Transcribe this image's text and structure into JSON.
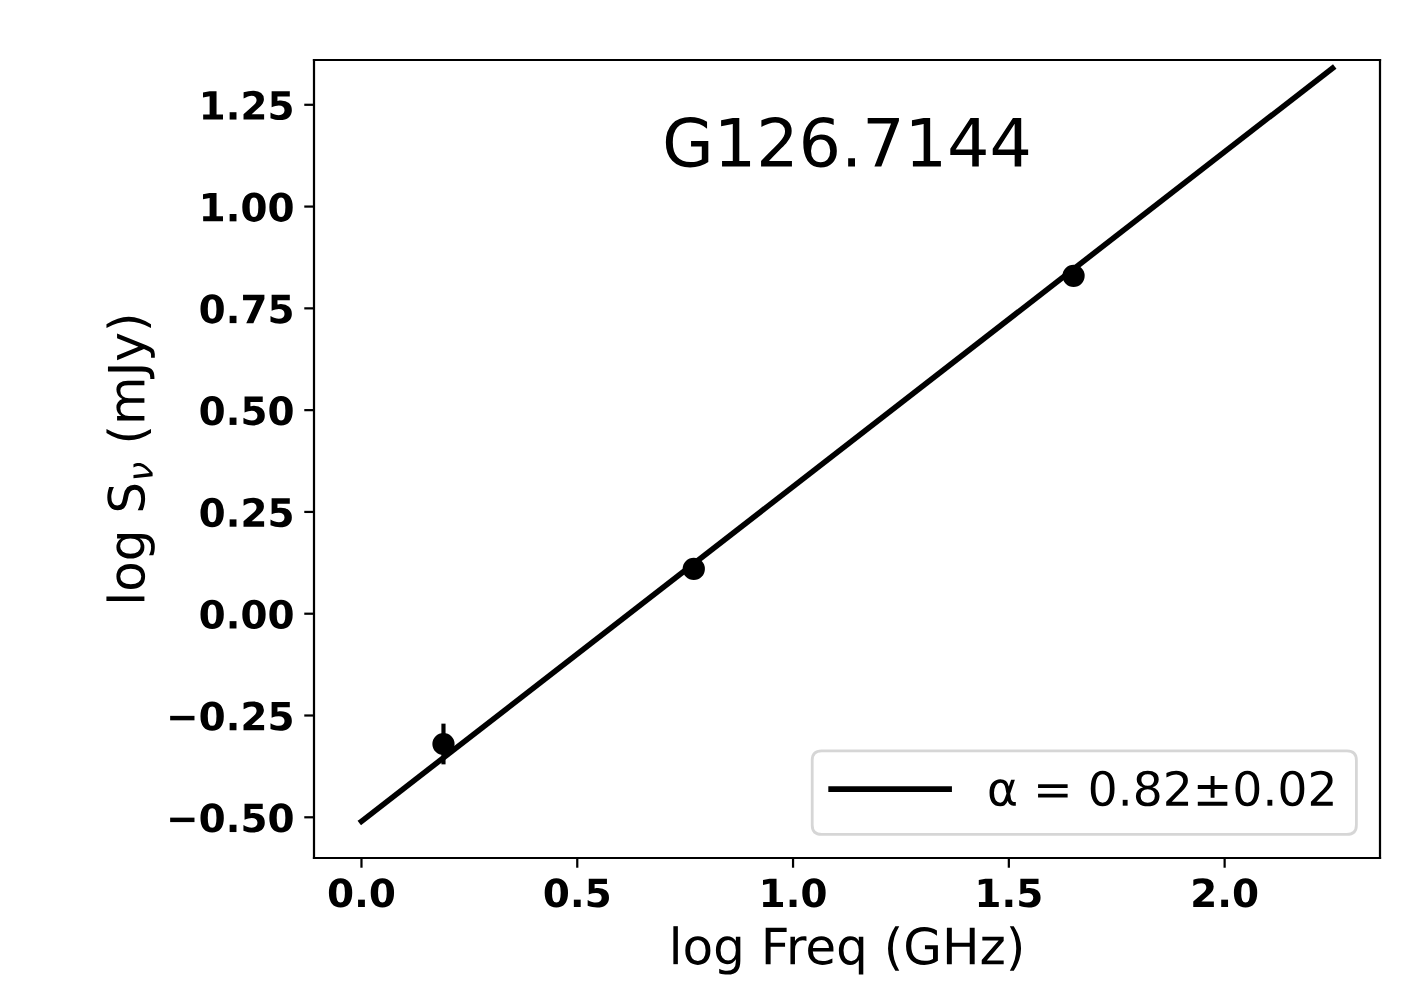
{
  "chart_data": {
    "type": "scatter",
    "xlabel": "log Freq (GHz)",
    "ylabel": "log S$_{ν}$ (mJy)",
    "annotations": [
      "G126.7144"
    ],
    "x": [
      0.19,
      0.77,
      1.65
    ],
    "series": [
      {
        "color": "#000000",
        "values": [
          -0.32,
          0.11,
          0.83
        ],
        "errors": [
          0.05,
          0.02,
          0.02
        ],
        "marker": "circle"
      },
      {
        "type": "line",
        "name": "α = 0.82±0.02",
        "color": "#000000",
        "x": [
          0.0,
          2.25
        ],
        "values": [
          -0.51,
          1.34
        ],
        "line_style": "solid",
        "marker": "none"
      }
    ],
    "xlim": [
      -0.11,
      2.36
    ],
    "ylim": [
      -0.6,
      1.36
    ],
    "xticks": [
      {
        "value": 0.0,
        "label": "0.0"
      },
      0.5,
      {
        "value": 1.0,
        "label": "1.0"
      },
      1.5,
      {
        "value": 2.0,
        "label": "2.0"
      }
    ],
    "yticks": [
      {
        "value": -0.5,
        "label": "−0.50"
      },
      {
        "value": -0.25,
        "label": "−0.25"
      },
      {
        "value": 0.0,
        "label": "0.00"
      },
      0.25,
      {
        "value": 0.5,
        "label": "0.50"
      },
      0.75,
      {
        "value": 1.0,
        "label": "1.00"
      },
      1.25
    ],
    "grid": false,
    "legend": "lower right"
  }
}
